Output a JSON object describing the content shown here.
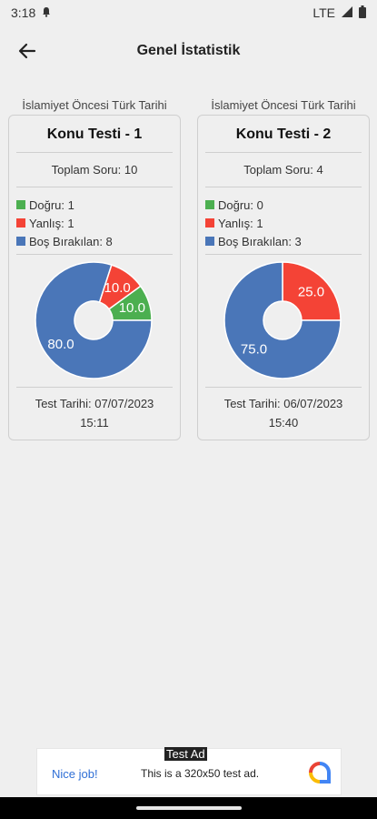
{
  "status": {
    "time": "3:18",
    "network": "LTE"
  },
  "header": {
    "title": "Genel İstatistik"
  },
  "colors": {
    "correct": "#4caf50",
    "wrong": "#f44336",
    "blank": "#4a76b8"
  },
  "cards": [
    {
      "subject": "İslamiyet Öncesi Türk Tarihi",
      "title": "Konu Testi - 1",
      "total": "Toplam Soru: 10",
      "legend": {
        "correct": "Doğru: 1",
        "wrong": "Yanlış: 1",
        "blank": "Boş Bırakılan: 8"
      },
      "chart_data": {
        "type": "pie",
        "categories": [
          "Doğru",
          "Yanlış",
          "Boş Bırakılan"
        ],
        "values": [
          10.0,
          10.0,
          80.0
        ],
        "labels": [
          "10.0",
          "10.0",
          "80.0"
        ]
      },
      "date_line1": "Test Tarihi: 07/07/2023",
      "date_line2": "15:11"
    },
    {
      "subject": "İslamiyet Öncesi Türk Tarihi",
      "title": "Konu Testi - 2",
      "total": "Toplam Soru: 4",
      "legend": {
        "correct": "Doğru: 0",
        "wrong": "Yanlış: 1",
        "blank": "Boş Bırakılan: 3"
      },
      "chart_data": {
        "type": "pie",
        "categories": [
          "Doğru",
          "Yanlış",
          "Boş Bırakılan"
        ],
        "values": [
          0,
          25.0,
          75.0
        ],
        "labels": [
          "",
          "25.0",
          "75.0"
        ]
      },
      "date_line1": "Test Tarihi: 06/07/2023",
      "date_line2": "15:40"
    }
  ],
  "ad": {
    "tag": "Test Ad",
    "cta": "Nice job!",
    "text": "This is a 320x50 test ad."
  }
}
